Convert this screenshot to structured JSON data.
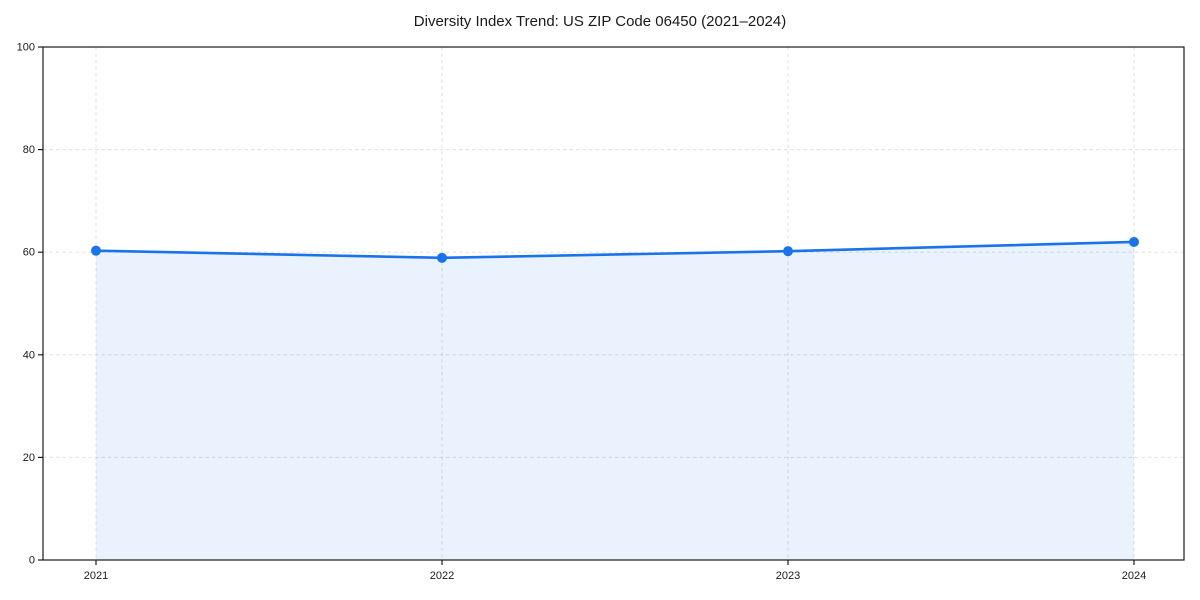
{
  "page": {
    "background_color": "#ffffff"
  },
  "chart_data": {
    "type": "area",
    "title": "Diversity Index Trend: US ZIP Code 06450 (2021–2024)",
    "x": [
      "2021",
      "2022",
      "2023",
      "2024"
    ],
    "values": [
      60.3,
      58.9,
      60.2,
      62.0
    ],
    "xlabel": "",
    "ylabel": "",
    "ylim": [
      0,
      100
    ],
    "yticks": [
      0,
      20,
      40,
      60,
      80,
      100
    ],
    "grid": "dashed",
    "legend_position": "none",
    "line_color": "#1a73e8",
    "marker": "circle",
    "fill_opacity": 0.09,
    "grid_color": "#e0e0e0",
    "axis_color": "#1a1a1a",
    "text_color": "#1a1a1a"
  }
}
